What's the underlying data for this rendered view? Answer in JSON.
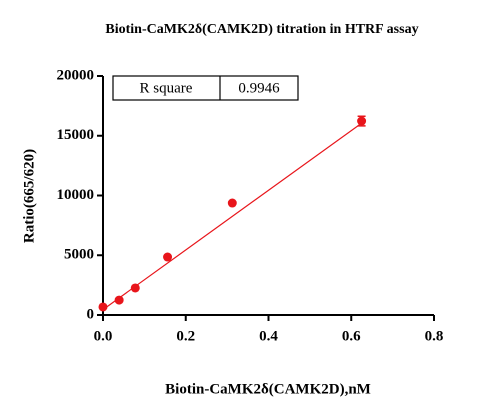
{
  "chart_data": {
    "type": "scatter",
    "title": "Biotin-CaMK2δ(CAMK2D) titration in HTRF assay",
    "x_label": "Biotin-CaMK2δ(CAMK2D),nM",
    "y_label": "Ratio(665/620)",
    "xlim": [
      0,
      0.8
    ],
    "xticks": [
      {
        "value": 0,
        "label": "0.0"
      },
      0.2,
      0.4,
      0.6,
      0.8
    ],
    "ylim": [
      0,
      20000
    ],
    "yticks": [
      0,
      5000,
      10000,
      15000,
      20000
    ],
    "series": [
      {
        "color": "#e8151b",
        "x": [
          0,
          0.039,
          0.078,
          0.156,
          0.3125,
          0.625
        ],
        "values": [
          670,
          1250,
          2260,
          4850,
          9370,
          16230
        ],
        "errors": [
          null,
          null,
          null,
          null,
          null,
          400
        ]
      }
    ],
    "fit": {
      "color": "#e8151b",
      "x": [
        0,
        0.625
      ],
      "values": [
        450,
        16050
      ]
    },
    "stat_table": {
      "label": "R square",
      "value": 0.9946
    }
  }
}
